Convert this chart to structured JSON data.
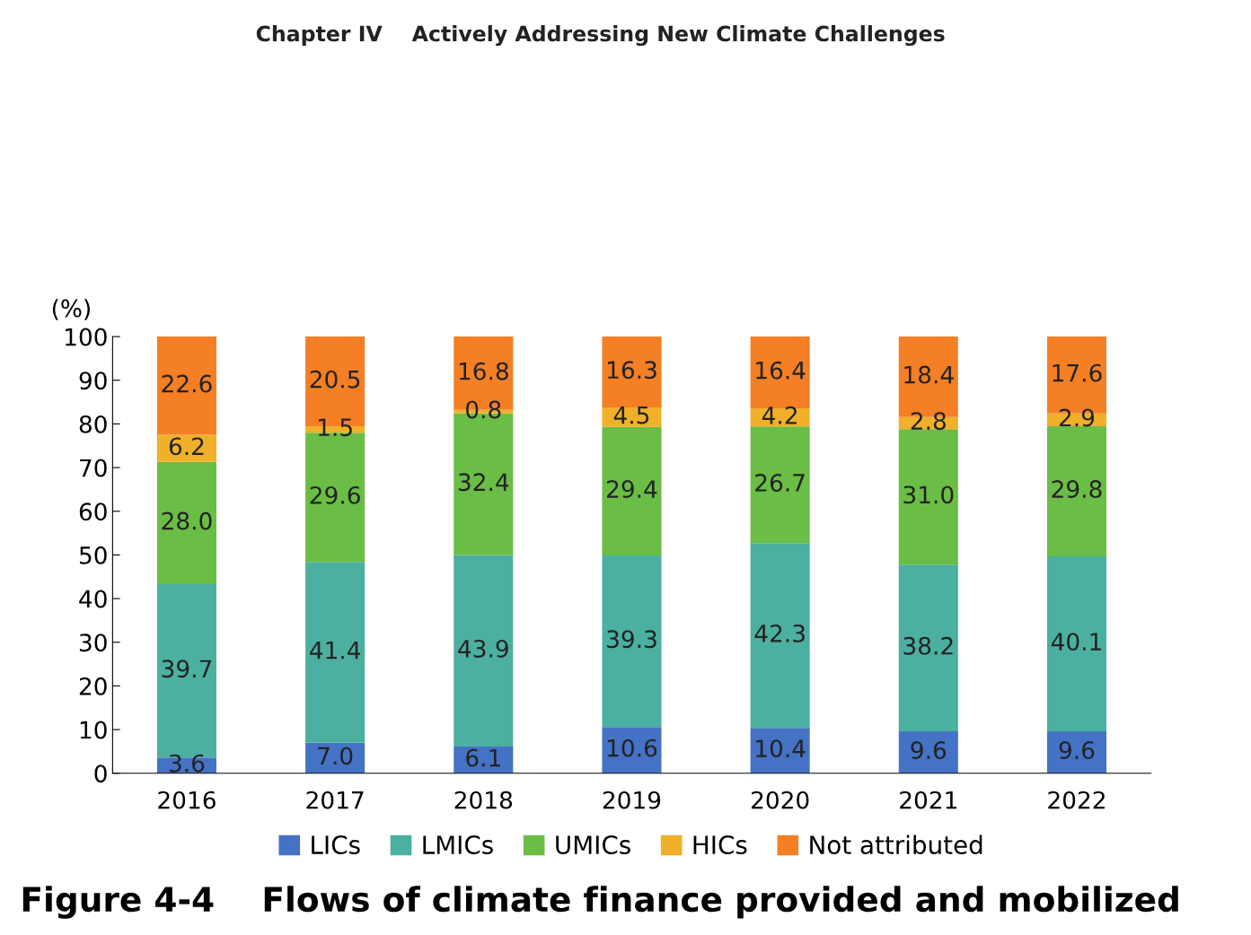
{
  "chart_data": {
    "type": "bar",
    "stacked": true,
    "title": "Figure 4-4    Flows of climate finance provided and mobilized",
    "annotations": [
      "Chapter IV    Actively Addressing New Climate Challenges"
    ],
    "ylabel": "(%)",
    "categories": [
      "2016",
      "2017",
      "2018",
      "2019",
      "2020",
      "2021",
      "2022"
    ],
    "series": [
      {
        "name": "LICs",
        "color": "#4472c4",
        "values": [
          3.6,
          7.0,
          6.1,
          10.6,
          10.4,
          9.6,
          9.6
        ],
        "value_labels": [
          "3.6",
          "7.0",
          "6.1",
          "10.6",
          "10.4",
          "9.6",
          "9.6"
        ]
      },
      {
        "name": "LMICs",
        "color": "#4bb0a0",
        "values": [
          39.7,
          41.4,
          43.9,
          39.3,
          42.3,
          38.2,
          40.1
        ],
        "value_labels": [
          "39.7",
          "41.4",
          "43.9",
          "39.3",
          "42.3",
          "38.2",
          "40.1"
        ]
      },
      {
        "name": "UMICs",
        "color": "#6abd45",
        "values": [
          28.0,
          29.6,
          32.4,
          29.4,
          26.7,
          31.0,
          29.8
        ],
        "value_labels": [
          "28.0",
          "29.6",
          "32.4",
          "29.4",
          "26.7",
          "31.0",
          "29.8"
        ]
      },
      {
        "name": "HICs",
        "color": "#f0b02a",
        "values": [
          6.2,
          1.5,
          0.8,
          4.5,
          4.2,
          2.8,
          2.9
        ],
        "value_labels": [
          "6.2",
          "1.5",
          "0.8",
          "4.5",
          "4.2",
          "2.8",
          "2.9"
        ]
      },
      {
        "name": "Not attributed",
        "color": "#f47f24",
        "values": [
          22.6,
          20.5,
          16.8,
          16.3,
          16.4,
          18.4,
          17.6
        ],
        "value_labels": [
          "22.6",
          "20.5",
          "16.8",
          "16.3",
          "16.4",
          "18.4",
          "17.6"
        ]
      }
    ],
    "ylim": [
      0,
      100
    ],
    "yticks": [
      0,
      10,
      20,
      30,
      40,
      50,
      60,
      70,
      80,
      90,
      100
    ],
    "legend": "bottom",
    "grid": false
  }
}
